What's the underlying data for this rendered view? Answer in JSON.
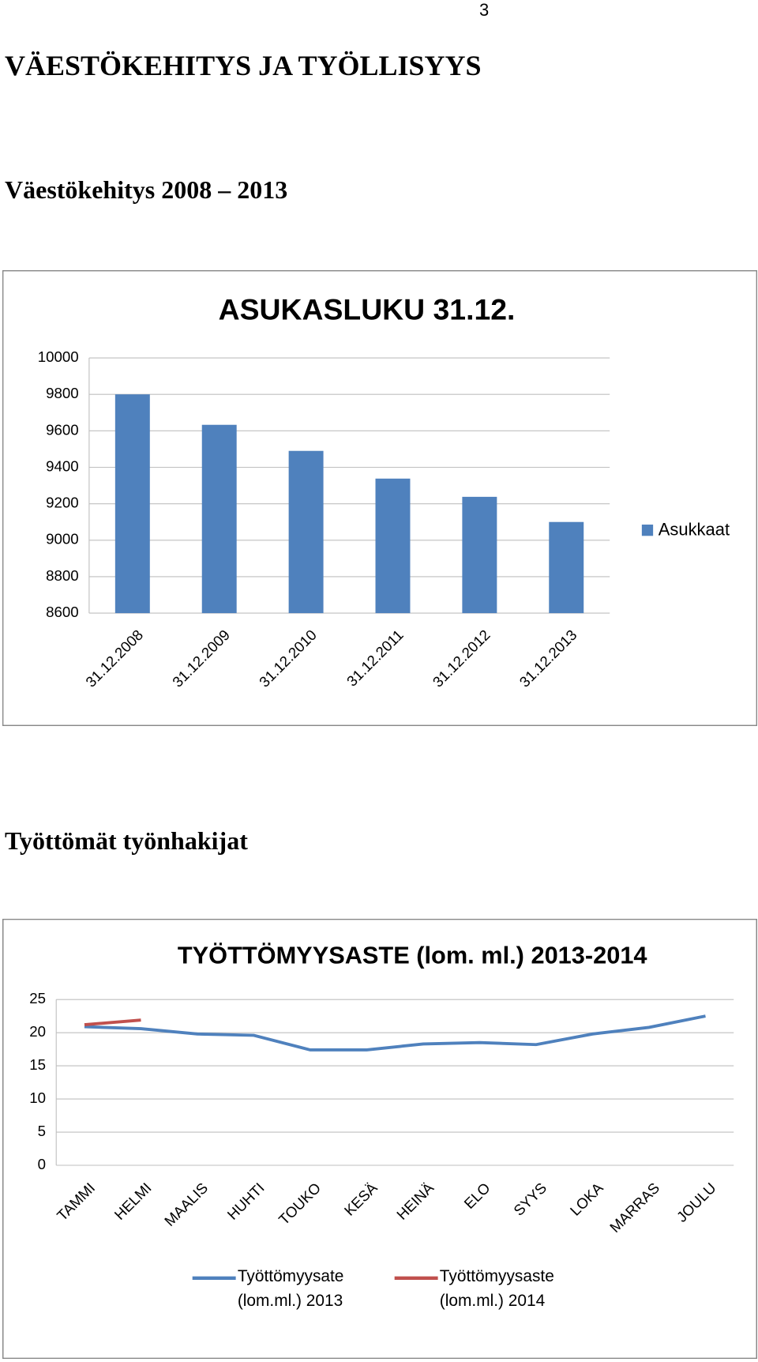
{
  "page_number": "3",
  "heading": "VÄESTÖKEHITYS JA TYÖLLISYYS",
  "subheadings": [
    "Väestökehitys 2008 – 2013",
    "Työttömät työnhakijat"
  ],
  "chart_data": [
    {
      "type": "bar",
      "title": "ASUKASLUKU 31.12.",
      "categories": [
        "31.12.2008",
        "31.12.2009",
        "31.12.2010",
        "31.12.2011",
        "31.12.2012",
        "31.12.2013"
      ],
      "series": [
        {
          "name": "Asukkaat",
          "color": "#4f81bd",
          "values": [
            9800,
            9633,
            9490,
            9338,
            9238,
            9100
          ]
        }
      ],
      "ylim": [
        8600,
        10000
      ],
      "yticks": [
        8600,
        8800,
        9000,
        9200,
        9400,
        9600,
        9800,
        10000
      ],
      "grid": true,
      "legend": "right"
    },
    {
      "type": "line",
      "title": "TYÖTTÖMYYSASTE (lom. ml.) 2013-2014",
      "categories": [
        "TAMMI",
        "HELMI",
        "MAALIS",
        "HUHTI",
        "TOUKO",
        "KESÄ",
        "HEINÄ",
        "ELO",
        "SYYS",
        "LOKA",
        "MARRAS",
        "JOULU"
      ],
      "series": [
        {
          "name": "Työttömyysate (lom.ml.) 2013",
          "color": "#4f81bd",
          "values": [
            20.9,
            20.6,
            19.8,
            19.6,
            17.4,
            17.4,
            18.3,
            18.5,
            18.2,
            19.8,
            20.8,
            22.5
          ]
        },
        {
          "name": "Työttömyysaste (lom.ml.) 2014",
          "color": "#c0504d",
          "values": [
            21.2,
            21.9,
            null,
            null,
            null,
            null,
            null,
            null,
            null,
            null,
            null,
            null
          ]
        }
      ],
      "ylim": [
        0,
        25
      ],
      "yticks": [
        0,
        5,
        10,
        15,
        20,
        25
      ],
      "grid": true,
      "legend": "bottom"
    }
  ]
}
